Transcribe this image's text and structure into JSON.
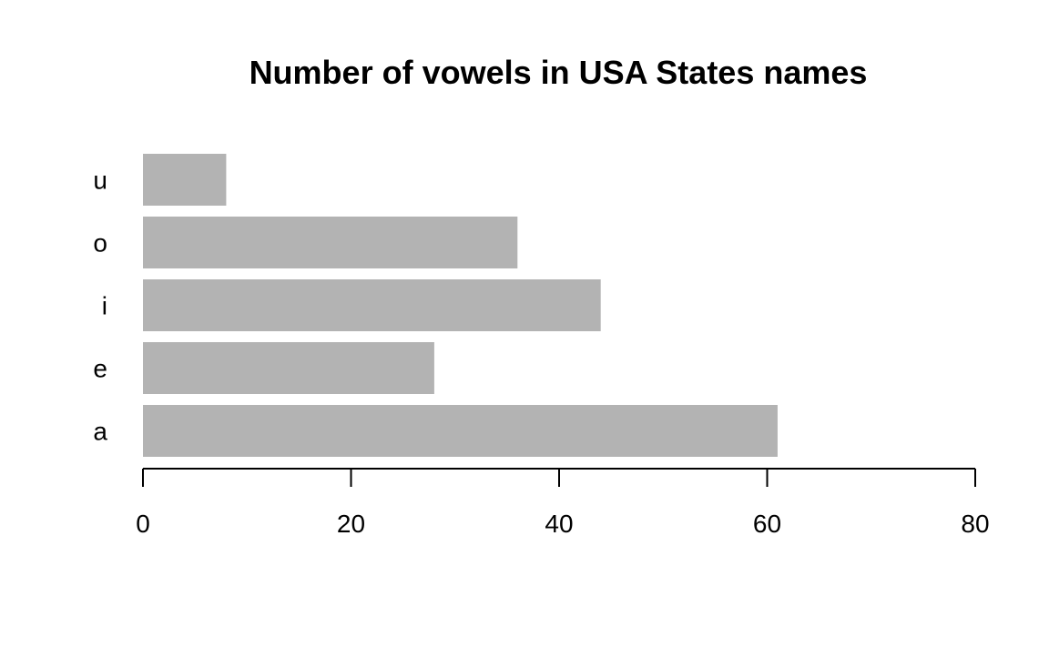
{
  "chart_data": {
    "type": "bar",
    "orientation": "horizontal",
    "title": "Number of vowels in USA States names",
    "xlabel": "",
    "ylabel": "",
    "categories": [
      "a",
      "e",
      "i",
      "o",
      "u"
    ],
    "values": [
      61,
      28,
      44,
      36,
      8
    ],
    "xlim": [
      0,
      80
    ],
    "x_ticks": [
      0,
      20,
      40,
      60,
      80
    ],
    "grid": false,
    "bar_color": "#b3b3b3"
  }
}
